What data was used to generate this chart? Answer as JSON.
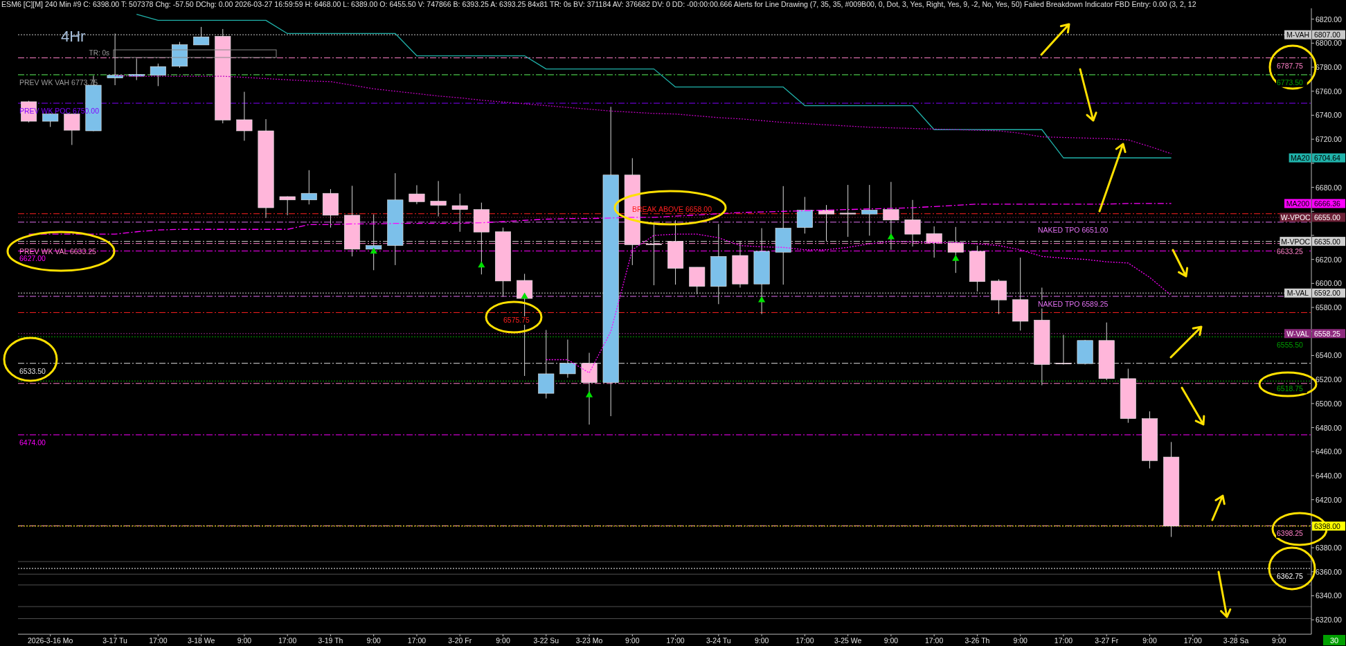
{
  "chart_data": {
    "type": "candlestick",
    "title": "ESM6 [C][M] 240 Min #9 C: 6398.00 T: 507378 Chg: -57.50 DChg: 0.00 2026-03-27 16:59:59 H: 6468.00 L: 6389.00 O: 6455.50 V: 747866 B: 6393.25 A: 6393.25 84x81 TR: 0s BV: 371184 AV: 376682 DV: 0 DD: -00:00:00.666 Alerts for Line Drawing (7, 35, 35, #009B00, 0, Dot, 3, Yes, Right, Yes, 9, -2, No, Yes, 50) Failed Breakdown Indicator FBD Entry: 0.00 (3, 2, 12",
    "categories": [
      null,
      "2026-3-16 Mo",
      null,
      null,
      "3-17 Tu",
      null,
      "17:00",
      null,
      "3-18 We",
      null,
      "9:00",
      null,
      "17:00",
      null,
      "3-19 Th",
      null,
      "9:00",
      null,
      "17:00",
      null,
      "3-20 Fr",
      null,
      "9:00",
      null,
      "3-22 Su",
      null,
      "3-23 Mo",
      null,
      "9:00",
      null,
      "17:00",
      null,
      "3-24 Tu",
      null,
      "9:00",
      null,
      "17:00",
      null,
      "3-25 We",
      null,
      "9:00",
      null,
      "17:00",
      null,
      "3-26 Th",
      null,
      "9:00",
      null,
      "17:00",
      null,
      "3-27 Fr",
      null,
      "9:00",
      null,
      "17:00",
      null,
      "3-28 Sa",
      null,
      "9:00",
      null
    ],
    "ohlc": [
      [
        6751.25,
        6752,
        6734,
        6735
      ],
      [
        6735,
        6741.5,
        6730.25,
        6741
      ],
      [
        6741,
        6741.25,
        6715.25,
        6727.5
      ],
      [
        6727,
        6773,
        6726.75,
        6765
      ],
      [
        6771,
        6808,
        6765,
        6773.25
      ],
      [
        6772.5,
        6787.25,
        6769.25,
        6774
      ],
      [
        6773.25,
        6783,
        6764.25,
        6780.5
      ],
      [
        6780.75,
        6801,
        6779.5,
        6798.75
      ],
      [
        6798.5,
        6813.5,
        6798.5,
        6805.25
      ],
      [
        6805.75,
        6811.75,
        6733.25,
        6736
      ],
      [
        6736.25,
        6759.5,
        6718.75,
        6727
      ],
      [
        6727,
        6736.75,
        6654.5,
        6663
      ],
      [
        6672.25,
        6672.5,
        6656.75,
        6669.5
      ],
      [
        6669.5,
        6694.25,
        6665.75,
        6675
      ],
      [
        6675,
        6678.5,
        6646.5,
        6656.75
      ],
      [
        6656.75,
        6681.25,
        6622.5,
        6628.5
      ],
      [
        6628.5,
        6657.5,
        6611,
        6631.5
      ],
      [
        6631.5,
        6691.75,
        6615.25,
        6669.5
      ],
      [
        6674.5,
        6681.75,
        6666,
        6668
      ],
      [
        6668.5,
        6685.25,
        6655.75,
        6665
      ],
      [
        6664.75,
        6674.75,
        6643,
        6661.5
      ],
      [
        6661.5,
        6667.25,
        6607.5,
        6642.75
      ],
      [
        6643,
        6646.5,
        6589,
        6602
      ],
      [
        6602.5,
        6608,
        6523,
        6587.5
      ],
      [
        6508.5,
        6561.25,
        6504.25,
        6524.75
      ],
      [
        6524.75,
        6553.25,
        6521.5,
        6533.5
      ],
      [
        6533.5,
        6542.25,
        6482.5,
        6517.5
      ],
      [
        6517.5,
        6747,
        6489.5,
        6690.25
      ],
      [
        6690.25,
        6704.25,
        6615.25,
        6632.25
      ],
      [
        6633,
        6649.5,
        6598.5,
        6632.25
      ],
      [
        6635,
        6652.5,
        6599,
        6612.5
      ],
      [
        6613.5,
        6613.5,
        6591,
        6597.5
      ],
      [
        6597.5,
        6649.5,
        6582.75,
        6622.5
      ],
      [
        6623.25,
        6635,
        6596.5,
        6599.5
      ],
      [
        6599.5,
        6646,
        6574.5,
        6626.75
      ],
      [
        6626,
        6681,
        6599,
        6646
      ],
      [
        6646.5,
        6672,
        6641.5,
        6661
      ],
      [
        6661,
        6665.25,
        6635,
        6657.75
      ],
      [
        6658.5,
        6682,
        6638.75,
        6657.75
      ],
      [
        6657.75,
        6682,
        6639.75,
        6661
      ],
      [
        6661.5,
        6684.5,
        6628,
        6652.75
      ],
      [
        6653,
        6669.5,
        6630.75,
        6641
      ],
      [
        6641.5,
        6647.5,
        6621.5,
        6633.75
      ],
      [
        6634,
        6647,
        6608.75,
        6626
      ],
      [
        6626.75,
        6631.5,
        6593.25,
        6601.5
      ],
      [
        6602,
        6603.5,
        6574.5,
        6586.25
      ],
      [
        6586.5,
        6621.5,
        6560.75,
        6568.5
      ],
      [
        6569.5,
        6596.5,
        6515.25,
        6532.5
      ],
      [
        6533.75,
        6557.25,
        6532.5,
        6533
      ],
      [
        6533.25,
        6553,
        6532.5,
        6552.5
      ],
      [
        6552.5,
        6567.5,
        6519.5,
        6520.75
      ],
      [
        6520.75,
        6529,
        6484,
        6487.5
      ],
      [
        6487.5,
        6493.5,
        6446,
        6452.5
      ],
      [
        6455.5,
        6468,
        6389,
        6398
      ],
      null,
      null,
      null,
      null,
      null,
      null
    ],
    "colors": [
      "#ffb6da",
      "#7cc0ea",
      "#ffb6da",
      "#7cc0ea",
      "#7cc0ea",
      "#7cc0ea",
      "#7cc0ea",
      "#7cc0ea",
      "#7cc0ea",
      "#ffb6da",
      "#ffb6da",
      "#ffb6da",
      "#ffb6da",
      "#7cc0ea",
      "#ffb6da",
      "#ffb6da",
      "#7cc0ea",
      "#7cc0ea",
      "#ffb6da",
      "#ffb6da",
      "#ffb6da",
      "#ffb6da",
      "#ffb6da",
      "#ffb6da",
      "#7cc0ea",
      "#7cc0ea",
      "#ffb6da",
      "#7cc0ea",
      "#ffb6da",
      "#ffb6da",
      "#ffb6da",
      "#ffb6da",
      "#7cc0ea",
      "#ffb6da",
      "#7cc0ea",
      "#7cc0ea",
      "#7cc0ea",
      "#ffb6da",
      "#ffb6da",
      "#7cc0ea",
      "#ffb6da",
      "#ffb6da",
      "#ffb6da",
      "#ffb6da",
      "#ffb6da",
      "#ffb6da",
      "#ffb6da",
      "#ffb6da",
      "#ffb6da",
      "#7cc0ea",
      "#ffb6da",
      "#ffb6da",
      "#ffb6da",
      "#ffb6da",
      null,
      null,
      null,
      null,
      null,
      null
    ],
    "ylim": [
      6308,
      6829
    ],
    "legend": "right",
    "yticks": [
      {
        "value": 6320,
        "label": "6320.00"
      },
      {
        "value": 6340,
        "label": "6340.00"
      },
      {
        "value": 6360,
        "label": "6360.00"
      },
      {
        "value": 6380,
        "label": "6380.00"
      },
      {
        "value": 6400,
        "label": null
      },
      {
        "value": 6420,
        "label": "6420.00"
      },
      {
        "value": 6440,
        "label": "6440.00"
      },
      {
        "value": 6460,
        "label": "6460.00"
      },
      {
        "value": 6480,
        "label": "6480.00"
      },
      {
        "value": 6500,
        "label": "6500.00"
      },
      {
        "value": 6520,
        "label": "6520.00"
      },
      {
        "value": 6540,
        "label": "6540.00"
      },
      {
        "value": 6560,
        "label": null
      },
      {
        "value": 6580,
        "label": "6580.00"
      },
      {
        "value": 6600,
        "label": "6600.00"
      },
      {
        "value": 6620,
        "label": "6620.00"
      },
      {
        "value": 6640,
        "label": null
      },
      {
        "value": 6660,
        "label": null
      },
      {
        "value": 6680,
        "label": "6680.00"
      },
      {
        "value": 6700,
        "label": null
      },
      {
        "value": 6720,
        "label": "6720.00"
      },
      {
        "value": 6740,
        "label": "6740.00"
      },
      {
        "value": 6760,
        "label": "6760.00"
      },
      {
        "value": 6780,
        "label": "6780.00"
      },
      {
        "value": 6800,
        "label": "6800.00"
      },
      {
        "value": 6820,
        "label": "6820.00"
      }
    ],
    "series": [
      {
        "name": "MA20",
        "type": "line",
        "color": "#20b2aa",
        "values": [
          null,
          null,
          null,
          null,
          null,
          6824,
          6819,
          6819,
          6819,
          6819,
          6819,
          6819,
          6808,
          6808,
          6808,
          6808,
          6808,
          6808,
          6789.5,
          6789.5,
          6789.5,
          6789.5,
          6789.5,
          6789.5,
          6778.5,
          6778.5,
          6778.5,
          6778.5,
          6778.5,
          6778.5,
          6763.5,
          6763.5,
          6763.5,
          6763.5,
          6763.5,
          6763.5,
          6748,
          6748,
          6748,
          6748,
          6748,
          6748,
          6728,
          6728,
          6728,
          6728,
          6728,
          6728,
          6704.5,
          6704.5,
          6704.5,
          6704.5,
          6704.5,
          6704.5,
          null,
          null,
          null,
          null,
          null,
          null
        ]
      },
      {
        "name": "MA200",
        "type": "line",
        "color": "#ff00ff",
        "line_style": "dashed",
        "values": [
          6641,
          6641,
          6641,
          6641,
          6641,
          6643,
          6644.5,
          6645,
          6645,
          6645,
          6645,
          6645,
          6645,
          6649,
          6649,
          6649.5,
          6649.5,
          6650,
          6650,
          6650,
          6650,
          6650.5,
          6651.5,
          6652.5,
          6653.5,
          6654,
          6654,
          6654.5,
          6655,
          6655,
          6656,
          6657,
          6658,
          6659,
          6659.5,
          6660,
          6660.5,
          6661,
          6661.5,
          6662,
          6662.5,
          6663,
          6664,
          6665,
          6666,
          6666,
          6666,
          6666,
          6666,
          6666,
          6666,
          6666.5,
          6666.5,
          6666.5,
          null,
          null,
          null,
          null,
          null,
          null
        ]
      },
      {
        "type": "line",
        "color": "#c000c0",
        "line_style": "dotted",
        "values": [
          null,
          null,
          null,
          null,
          6773,
          6772.5,
          6772.5,
          6772.5,
          6772.5,
          6772.5,
          6771.5,
          6770.5,
          6769.5,
          6768.5,
          6768,
          6765,
          6762,
          6760,
          6758,
          6756,
          6754.5,
          6752.5,
          6751,
          6749.5,
          6748,
          6746.5,
          6745,
          6743.5,
          6742.5,
          6741.5,
          6741,
          6739.5,
          6738,
          6737,
          6735.5,
          6734,
          6733,
          6732,
          6731,
          6730,
          6729.5,
          6729,
          6728.5,
          6728,
          6727.5,
          6727,
          6725,
          6722,
          6721.5,
          6721,
          6720.5,
          6719.5,
          6714,
          6708,
          null,
          null,
          null,
          null,
          null,
          null
        ]
      },
      {
        "type": "line",
        "color": "#ff00ff",
        "line_style": "dotted",
        "values": [
          null,
          null,
          null,
          null,
          null,
          null,
          null,
          null,
          null,
          null,
          null,
          null,
          null,
          null,
          null,
          null,
          null,
          null,
          null,
          null,
          null,
          null,
          null,
          null,
          6536.5,
          6536.5,
          6525.5,
          6560,
          6628,
          6640,
          6641,
          6641,
          6638,
          6631.5,
          6630.5,
          6630,
          6628,
          6628,
          6630,
          6633,
          6635,
          6634.5,
          6634,
          6634,
          6633,
          6631.5,
          6628,
          6622.5,
          6621,
          6620,
          6618,
          6617,
          6605,
          6590,
          null,
          null,
          null,
          null,
          null,
          null
        ]
      },
      {
        "type": "scatter",
        "color": "#00e000",
        "marker": "triangle",
        "values": [
          null,
          null,
          null,
          null,
          null,
          null,
          null,
          null,
          null,
          null,
          null,
          null,
          null,
          null,
          null,
          null,
          6626.5,
          null,
          null,
          null,
          null,
          6615,
          null,
          6589,
          null,
          null,
          6507,
          null,
          null,
          null,
          null,
          null,
          null,
          null,
          6586,
          null,
          null,
          null,
          null,
          null,
          6638.5,
          null,
          null,
          6620.5,
          null,
          null,
          null,
          null,
          null,
          null,
          null,
          null,
          null,
          null,
          null,
          null,
          null,
          null,
          null,
          null
        ]
      }
    ],
    "ref_lines": [
      {
        "axis": "y",
        "value": 6807,
        "label": "M-VAH",
        "color": "#c8c8c8",
        "line_style": "dotted"
      },
      {
        "axis": "y",
        "value": 6787.75,
        "color": "#ff80c8",
        "line_style": "dashed"
      },
      {
        "axis": "y",
        "value": 6773.75,
        "color": "#9a9a9a",
        "line_style": "dashed"
      },
      {
        "axis": "y",
        "value": 6773.5,
        "color": "#00a000",
        "line_style": "dashed"
      },
      {
        "axis": "y",
        "value": 6750,
        "color": "#8000ff",
        "line_style": "dashed"
      },
      {
        "axis": "y",
        "value": 6658,
        "color": "#ff2020",
        "line_style": "dashed"
      },
      {
        "axis": "y",
        "value": 6655,
        "label": "W-VPOC",
        "color": "#6b1f35",
        "line_style": "dotted"
      },
      {
        "axis": "y",
        "value": 6651,
        "color": "#e070f0",
        "line_style": "dashed"
      },
      {
        "axis": "y",
        "value": 6635,
        "label": "M-VPOC",
        "color": "#d0d0d0",
        "line_style": "dashed"
      },
      {
        "axis": "y",
        "value": 6633.25,
        "color": "#ff80c8",
        "line_style": "dashed"
      },
      {
        "axis": "y",
        "value": 6627,
        "color": "#ff00ff",
        "line_style": "dashed"
      },
      {
        "axis": "y",
        "value": 6592,
        "label": "M-VAL",
        "color": "#d0d0d0",
        "line_style": "dotted"
      },
      {
        "axis": "y",
        "value": 6589.25,
        "color": "#e070f0",
        "line_style": "dashed"
      },
      {
        "axis": "y",
        "value": 6575.75,
        "color": "#ff2020",
        "line_style": "dashed"
      },
      {
        "axis": "y",
        "value": 6558.25,
        "label": "W-VAL",
        "color": "#8e2a7e",
        "line_style": "dotted"
      },
      {
        "axis": "y",
        "value": 6555.5,
        "color": "#00a000",
        "line_style": "dotted"
      },
      {
        "axis": "y",
        "value": 6533.5,
        "color": "#e0e0e0",
        "line_style": "dashed"
      },
      {
        "axis": "y",
        "value": 6518.75,
        "color": "#00a000",
        "line_style": "dotted"
      },
      {
        "axis": "y",
        "value": 6516.75,
        "color": "#ff80c8",
        "line_style": "dashed"
      },
      {
        "axis": "y",
        "value": 6474,
        "color": "#ff00ff",
        "line_style": "dashed"
      },
      {
        "axis": "y",
        "value": 6398.25,
        "color": "#ff80c8",
        "line_style": "dashed"
      },
      {
        "axis": "y",
        "value": 6398,
        "label": null,
        "color": "#ffff00",
        "line_style": "dotted"
      },
      {
        "axis": "y",
        "value": 6368.5,
        "color": "#505050",
        "line_style": "solid"
      },
      {
        "axis": "y",
        "value": 6362.75,
        "color": "#ffffff",
        "line_style": "dotted"
      },
      {
        "axis": "y",
        "value": 6358,
        "color": "#505050",
        "line_style": "solid"
      },
      {
        "axis": "y",
        "value": 6349,
        "color": "#505050",
        "line_style": "solid"
      },
      {
        "axis": "y",
        "value": 6331,
        "color": "#505050",
        "line_style": "solid"
      },
      {
        "axis": "y",
        "value": 6321,
        "color": "#505050",
        "line_style": "solid"
      }
    ],
    "annotations": [
      "4Hr",
      "TR: 0s",
      "30",
      {
        "text": "PREV WK VAH 6773.75",
        "y": 6773.75
      },
      {
        "text": "PREV WK POC 6750.00",
        "y": 6750
      },
      {
        "text": "PREV WK VAL 6633.25",
        "y": 6633.25
      },
      {
        "text": "6627.00",
        "y": 6627
      },
      {
        "text": "6533.50",
        "y": 6533.5
      },
      {
        "text": "6474.00",
        "y": 6474
      },
      {
        "text": "BREAK ABOVE 6658.00",
        "y": 6658
      },
      {
        "text": "6575.75",
        "y": 6575.75
      },
      {
        "text": "NAKED TPO 6651.00",
        "y": 6651
      },
      {
        "text": "NAKED TPO 6589.25",
        "y": 6589.25
      },
      {
        "text": "6787.75",
        "y": 6787.75
      },
      {
        "text": "6773.50",
        "y": 6773.5
      },
      {
        "text": "6633.25",
        "y": 6633.25
      },
      {
        "text": "6555.50",
        "y": 6555.5
      },
      {
        "text": "6518.75",
        "y": 6518.75
      },
      {
        "text": "6398.25",
        "y": 6398.25
      },
      {
        "text": "6362.75",
        "y": 6362.75
      },
      "6807.00",
      "6704.64",
      "6666.36",
      "6655.00",
      "6635.00",
      "6592.00",
      "6558.25",
      "6398.00"
    ]
  }
}
